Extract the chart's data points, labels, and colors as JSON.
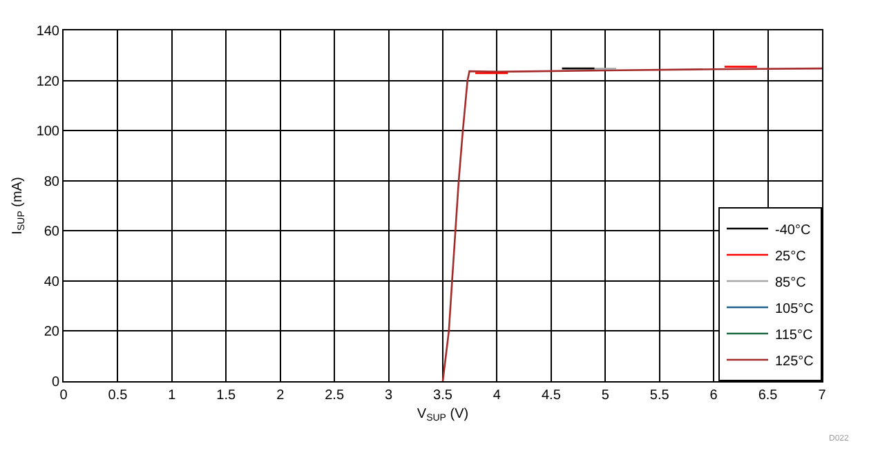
{
  "chart_data": {
    "type": "line",
    "xlabel": "V$_{SUP}$ (V)",
    "ylabel": "I$_{SUP}$ (mA)",
    "xlim": [
      0,
      7
    ],
    "xticks": [
      0,
      0.5,
      1,
      1.5,
      2,
      2.5,
      3,
      3.5,
      4,
      4.5,
      5,
      5.5,
      6,
      6.5,
      7
    ],
    "ylim": [
      0,
      140
    ],
    "yticks": [
      0,
      20,
      40,
      60,
      80,
      100,
      120,
      140
    ],
    "grid": true,
    "legend": "bottom right",
    "line_style": "solid",
    "marker": "none",
    "annotations": [
      "D022"
    ],
    "series": [
      {
        "name": "-40°C",
        "color": "#000000",
        "x": [
          4.6,
          4.9
        ],
        "values": [
          124.8,
          124.8
        ]
      },
      {
        "name": "25°C",
        "color": "#ff0000",
        "x": [
          3.8,
          4.1,
          4.15,
          6.1,
          6.4
        ],
        "values": [
          122.9,
          122.9,
          null,
          125.5,
          125.5
        ]
      },
      {
        "name": "85°C",
        "color": "#a6a6a6",
        "x": [
          4.9,
          5.1
        ],
        "values": [
          124.7,
          124.7
        ]
      },
      {
        "name": "105°C",
        "color": "#1f5f8b"
      },
      {
        "name": "115°C",
        "color": "#1e6b45"
      },
      {
        "name": "125°C",
        "color": "#a52a2a",
        "x": [
          3.5,
          3.556,
          3.586,
          3.647,
          3.685,
          3.728,
          3.746,
          4,
          5,
          6,
          7
        ],
        "values": [
          0,
          20,
          40,
          80,
          100,
          120,
          123.7,
          123.5,
          124,
          124.5,
          124.8
        ]
      }
    ]
  }
}
